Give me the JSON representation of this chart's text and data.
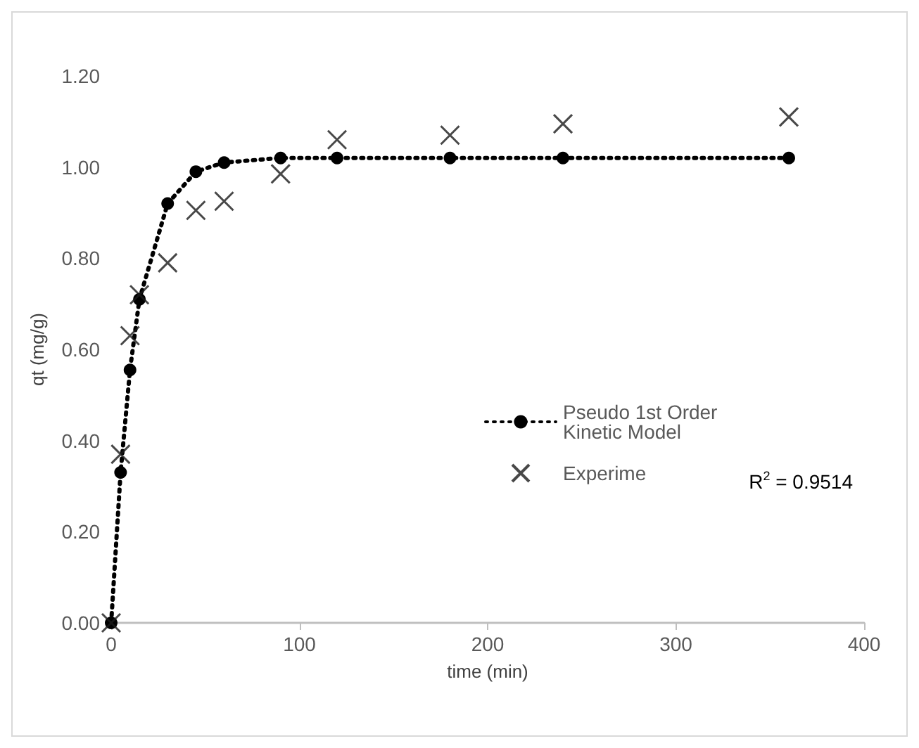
{
  "chart_data": {
    "type": "scatter",
    "xlabel": "time (min)",
    "ylabel": "qt (mg/g)",
    "xlim": [
      0,
      400
    ],
    "xticks": [
      0,
      100,
      200,
      300,
      400
    ],
    "ylim": [
      0,
      1.2
    ],
    "yticks": [
      {
        "value": 0,
        "label": "0.00"
      },
      {
        "value": 0.2,
        "label": "0.20"
      },
      {
        "value": 0.4,
        "label": "0.40"
      },
      {
        "value": 0.6,
        "label": "0.60"
      },
      {
        "value": 0.8,
        "label": "0.80"
      },
      {
        "value": 1,
        "label": "1.00"
      },
      {
        "value": 1.2,
        "label": "1.20"
      }
    ],
    "grid": false,
    "legend": "right",
    "annotations": [
      "R$^{2}$ = 0.9514"
    ],
    "series": [
      {
        "name": "Pseudo 1st Order Kinetic Model",
        "type": "line",
        "color": "#000000",
        "marker": "circle",
        "line_style": "dotted",
        "x": [
          0,
          5,
          10,
          15,
          30,
          45,
          60,
          90,
          120,
          180,
          240,
          360
        ],
        "values": [
          0,
          0.33,
          0.555,
          0.71,
          0.92,
          0.99,
          1.01,
          1.02,
          1.02,
          1.02,
          1.02,
          1.02
        ]
      },
      {
        "name": "Experime",
        "type": "scatter",
        "color": "#1a1a1a",
        "marker": "cross",
        "x": [
          0,
          5,
          10,
          15,
          30,
          45,
          60,
          90,
          120,
          180,
          240,
          360
        ],
        "values": [
          0,
          0.37,
          0.63,
          0.72,
          0.79,
          0.905,
          0.925,
          0.985,
          1.06,
          1.07,
          1.095,
          1.11
        ]
      }
    ]
  }
}
